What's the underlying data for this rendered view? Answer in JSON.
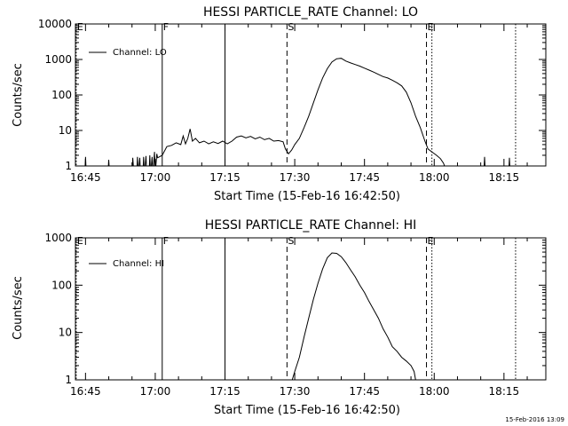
{
  "chart_data": [
    {
      "type": "line",
      "title": "HESSI PARTICLE_RATE Channel: LO",
      "xlabel": "Start Time (15-Feb-16 16:42:50)",
      "ylabel": "Counts/sec",
      "y_scale": "log",
      "xlim": [
        "16:42:50",
        "18:24:00"
      ],
      "ylim": [
        1,
        10000
      ],
      "x_ticks": [
        "16:45",
        "17:00",
        "17:15",
        "17:30",
        "17:45",
        "18:00",
        "18:15"
      ],
      "y_ticks": [
        "1",
        "10",
        "100",
        "1000",
        "10000"
      ],
      "legend": {
        "label": "Channel: LO",
        "position": "top-left"
      },
      "markers": [
        {
          "time": "16:43:00",
          "style": "dotted",
          "label": "E"
        },
        {
          "time": "17:01:30",
          "style": "solid",
          "label": "F"
        },
        {
          "time": "17:15:00",
          "style": "solid",
          "label": ""
        },
        {
          "time": "17:28:20",
          "style": "dashed",
          "label": "S"
        },
        {
          "time": "17:58:20",
          "style": "dashed",
          "label": "E"
        },
        {
          "time": "17:59:30",
          "style": "dotted",
          "label": ""
        },
        {
          "time": "18:17:30",
          "style": "dotted",
          "label": ""
        }
      ],
      "series": [
        {
          "name": "Channel: LO",
          "segments": [
            [
              [
                "16:44:50",
                0.6
              ],
              [
                "16:45:00",
                1.8
              ],
              [
                "16:45:10",
                0.6
              ]
            ],
            [
              [
                "16:49:50",
                0.6
              ],
              [
                "16:50:00",
                1.5
              ],
              [
                "16:50:10",
                0.6
              ]
            ],
            [
              [
                "16:55:00",
                0.6
              ],
              [
                "16:55:10",
                1.7
              ],
              [
                "16:55:25",
                0.6
              ]
            ],
            [
              [
                "16:56:00",
                0.6
              ],
              [
                "16:56:10",
                1.8
              ],
              [
                "16:56:20",
                0.6
              ],
              [
                "16:56:40",
                1.7
              ],
              [
                "16:56:50",
                0.6
              ]
            ],
            [
              [
                "16:57:20",
                0.6
              ],
              [
                "16:57:30",
                1.8
              ],
              [
                "16:57:40",
                0.6
              ],
              [
                "16:58:00",
                1.9
              ],
              [
                "16:58:10",
                0.6
              ]
            ],
            [
              [
                "16:58:40",
                0.6
              ],
              [
                "16:58:50",
                2.0
              ],
              [
                "16:59:00",
                0.6
              ],
              [
                "16:59:20",
                1.8
              ],
              [
                "16:59:30",
                0.6
              ],
              [
                "16:59:50",
                2.5
              ],
              [
                "17:00:00",
                0.6
              ],
              [
                "17:00:20",
                2.2
              ],
              [
                "17:00:30",
                1.7
              ],
              [
                "17:01:30",
                2.0
              ]
            ],
            [
              [
                "17:01:30",
                2.0
              ],
              [
                "17:02:30",
                3.5
              ],
              [
                "17:03:30",
                3.8
              ],
              [
                "17:04:30",
                4.5
              ],
              [
                "17:05:30",
                4.0
              ],
              [
                "17:06:00",
                7.0
              ],
              [
                "17:06:30",
                4.2
              ],
              [
                "17:07:00",
                6.0
              ],
              [
                "17:07:30",
                11.0
              ],
              [
                "17:08:00",
                5.0
              ],
              [
                "17:08:40",
                6.0
              ],
              [
                "17:09:30",
                4.5
              ],
              [
                "17:10:30",
                5.0
              ],
              [
                "17:11:30",
                4.2
              ],
              [
                "17:12:30",
                4.8
              ],
              [
                "17:13:30",
                4.3
              ],
              [
                "17:14:30",
                5.0
              ],
              [
                "17:15:30",
                4.2
              ],
              [
                "17:16:30",
                5.0
              ],
              [
                "17:17:30",
                6.5
              ],
              [
                "17:18:30",
                7.0
              ],
              [
                "17:19:30",
                6.2
              ],
              [
                "17:20:30",
                6.8
              ],
              [
                "17:21:30",
                5.8
              ],
              [
                "17:22:30",
                6.5
              ],
              [
                "17:23:30",
                5.5
              ],
              [
                "17:24:30",
                6.0
              ],
              [
                "17:25:30",
                5.0
              ],
              [
                "17:26:30",
                5.2
              ],
              [
                "17:27:30",
                4.8
              ],
              [
                "17:28:00",
                3.0
              ],
              [
                "17:28:40",
                2.2
              ],
              [
                "17:29:20",
                2.8
              ],
              [
                "17:30:00",
                4.0
              ],
              [
                "17:31:00",
                6.0
              ],
              [
                "17:32:00",
                12.0
              ],
              [
                "17:33:00",
                25.0
              ],
              [
                "17:34:00",
                60.0
              ],
              [
                "17:35:00",
                140.0
              ],
              [
                "17:36:00",
                300.0
              ],
              [
                "17:37:00",
                550.0
              ],
              [
                "17:38:00",
                850.0
              ],
              [
                "17:39:00",
                1050.0
              ],
              [
                "17:40:00",
                1080.0
              ],
              [
                "17:41:00",
                900.0
              ],
              [
                "17:42:00",
                800.0
              ],
              [
                "17:43:00",
                720.0
              ],
              [
                "17:44:00",
                650.0
              ],
              [
                "17:45:00",
                570.0
              ],
              [
                "17:46:00",
                500.0
              ],
              [
                "17:47:00",
                440.0
              ],
              [
                "17:48:00",
                380.0
              ],
              [
                "17:49:00",
                330.0
              ],
              [
                "17:50:00",
                300.0
              ],
              [
                "17:51:00",
                260.0
              ],
              [
                "17:52:00",
                220.0
              ],
              [
                "17:53:00",
                180.0
              ],
              [
                "17:54:00",
                120.0
              ],
              [
                "17:55:00",
                60.0
              ],
              [
                "17:56:00",
                25.0
              ],
              [
                "17:57:00",
                12.0
              ],
              [
                "17:58:00",
                5.0
              ],
              [
                "17:58:40",
                3.0
              ],
              [
                "17:59:30",
                2.5
              ],
              [
                "18:00:30",
                2.0
              ],
              [
                "18:01:20",
                1.6
              ],
              [
                "18:02:00",
                1.2
              ],
              [
                "18:02:40",
                0.7
              ]
            ],
            [
              [
                "18:10:40",
                0.6
              ],
              [
                "18:10:50",
                1.8
              ],
              [
                "18:11:00",
                0.6
              ]
            ],
            [
              [
                "18:16:00",
                0.6
              ],
              [
                "18:16:10",
                1.7
              ],
              [
                "18:16:20",
                0.6
              ]
            ]
          ]
        }
      ]
    },
    {
      "type": "line",
      "title": "HESSI PARTICLE_RATE Channel: HI",
      "xlabel": "Start Time (15-Feb-16 16:42:50)",
      "ylabel": "Counts/sec",
      "y_scale": "log",
      "xlim": [
        "16:42:50",
        "18:24:00"
      ],
      "ylim": [
        1,
        1000
      ],
      "x_ticks": [
        "16:45",
        "17:00",
        "17:15",
        "17:30",
        "17:45",
        "18:00",
        "18:15"
      ],
      "y_ticks": [
        "1",
        "10",
        "100",
        "1000"
      ],
      "legend": {
        "label": "Channel: HI",
        "position": "top-left"
      },
      "markers": [
        {
          "time": "16:43:00",
          "style": "dotted",
          "label": "E"
        },
        {
          "time": "17:01:30",
          "style": "solid",
          "label": "F"
        },
        {
          "time": "17:15:00",
          "style": "solid",
          "label": ""
        },
        {
          "time": "17:28:20",
          "style": "dashed",
          "label": "S"
        },
        {
          "time": "17:58:20",
          "style": "dashed",
          "label": "E"
        },
        {
          "time": "17:59:30",
          "style": "dotted",
          "label": ""
        },
        {
          "time": "18:17:30",
          "style": "dotted",
          "label": ""
        }
      ],
      "series": [
        {
          "name": "Channel: HI",
          "segments": [
            [
              [
                "17:29:10",
                0.8
              ],
              [
                "17:30:00",
                1.5
              ],
              [
                "17:31:00",
                3.0
              ],
              [
                "17:32:00",
                8.0
              ],
              [
                "17:33:00",
                20.0
              ],
              [
                "17:34:00",
                50.0
              ],
              [
                "17:35:00",
                110.0
              ],
              [
                "17:36:00",
                220.0
              ],
              [
                "17:37:00",
                380.0
              ],
              [
                "17:38:00",
                480.0
              ],
              [
                "17:39:00",
                470.0
              ],
              [
                "17:40:00",
                400.0
              ],
              [
                "17:41:00",
                300.0
              ],
              [
                "17:42:00",
                210.0
              ],
              [
                "17:43:00",
                150.0
              ],
              [
                "17:44:00",
                100.0
              ],
              [
                "17:45:00",
                70.0
              ],
              [
                "17:46:00",
                45.0
              ],
              [
                "17:47:00",
                30.0
              ],
              [
                "17:48:00",
                20.0
              ],
              [
                "17:49:00",
                12.0
              ],
              [
                "17:50:00",
                8.0
              ],
              [
                "17:51:00",
                5.0
              ],
              [
                "17:52:00",
                4.0
              ],
              [
                "17:53:00",
                3.0
              ],
              [
                "17:54:00",
                2.5
              ],
              [
                "17:55:00",
                2.0
              ],
              [
                "17:55:40",
                1.5
              ],
              [
                "17:56:10",
                0.8
              ]
            ]
          ]
        }
      ]
    }
  ],
  "timestamp": "15-Feb-2016 13:09"
}
